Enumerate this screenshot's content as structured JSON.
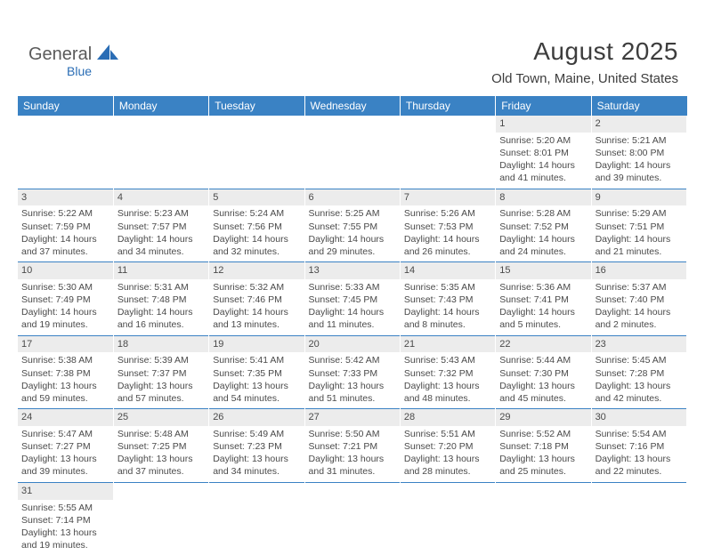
{
  "logo": {
    "part1": "General",
    "part2": "Blue"
  },
  "title": "August 2025",
  "location": "Old Town, Maine, United States",
  "colors": {
    "header_bg": "#3a82c4",
    "header_fg": "#ffffff",
    "daynum_bg": "#ececec",
    "text": "#4a4a4a",
    "brand_gray": "#5a5a5a",
    "brand_blue": "#2a6db5",
    "row_divider": "#3a82c4"
  },
  "fonts": {
    "title_size_pt": 21,
    "location_size_pt": 11,
    "day_header_size_pt": 9,
    "cell_size_pt": 8
  },
  "day_headers": [
    "Sunday",
    "Monday",
    "Tuesday",
    "Wednesday",
    "Thursday",
    "Friday",
    "Saturday"
  ],
  "weeks": [
    [
      {
        "num": "",
        "sunrise": "",
        "sunset": "",
        "daylight": ""
      },
      {
        "num": "",
        "sunrise": "",
        "sunset": "",
        "daylight": ""
      },
      {
        "num": "",
        "sunrise": "",
        "sunset": "",
        "daylight": ""
      },
      {
        "num": "",
        "sunrise": "",
        "sunset": "",
        "daylight": ""
      },
      {
        "num": "",
        "sunrise": "",
        "sunset": "",
        "daylight": ""
      },
      {
        "num": "1",
        "sunrise": "Sunrise: 5:20 AM",
        "sunset": "Sunset: 8:01 PM",
        "daylight": "Daylight: 14 hours and 41 minutes."
      },
      {
        "num": "2",
        "sunrise": "Sunrise: 5:21 AM",
        "sunset": "Sunset: 8:00 PM",
        "daylight": "Daylight: 14 hours and 39 minutes."
      }
    ],
    [
      {
        "num": "3",
        "sunrise": "Sunrise: 5:22 AM",
        "sunset": "Sunset: 7:59 PM",
        "daylight": "Daylight: 14 hours and 37 minutes."
      },
      {
        "num": "4",
        "sunrise": "Sunrise: 5:23 AM",
        "sunset": "Sunset: 7:57 PM",
        "daylight": "Daylight: 14 hours and 34 minutes."
      },
      {
        "num": "5",
        "sunrise": "Sunrise: 5:24 AM",
        "sunset": "Sunset: 7:56 PM",
        "daylight": "Daylight: 14 hours and 32 minutes."
      },
      {
        "num": "6",
        "sunrise": "Sunrise: 5:25 AM",
        "sunset": "Sunset: 7:55 PM",
        "daylight": "Daylight: 14 hours and 29 minutes."
      },
      {
        "num": "7",
        "sunrise": "Sunrise: 5:26 AM",
        "sunset": "Sunset: 7:53 PM",
        "daylight": "Daylight: 14 hours and 26 minutes."
      },
      {
        "num": "8",
        "sunrise": "Sunrise: 5:28 AM",
        "sunset": "Sunset: 7:52 PM",
        "daylight": "Daylight: 14 hours and 24 minutes."
      },
      {
        "num": "9",
        "sunrise": "Sunrise: 5:29 AM",
        "sunset": "Sunset: 7:51 PM",
        "daylight": "Daylight: 14 hours and 21 minutes."
      }
    ],
    [
      {
        "num": "10",
        "sunrise": "Sunrise: 5:30 AM",
        "sunset": "Sunset: 7:49 PM",
        "daylight": "Daylight: 14 hours and 19 minutes."
      },
      {
        "num": "11",
        "sunrise": "Sunrise: 5:31 AM",
        "sunset": "Sunset: 7:48 PM",
        "daylight": "Daylight: 14 hours and 16 minutes."
      },
      {
        "num": "12",
        "sunrise": "Sunrise: 5:32 AM",
        "sunset": "Sunset: 7:46 PM",
        "daylight": "Daylight: 14 hours and 13 minutes."
      },
      {
        "num": "13",
        "sunrise": "Sunrise: 5:33 AM",
        "sunset": "Sunset: 7:45 PM",
        "daylight": "Daylight: 14 hours and 11 minutes."
      },
      {
        "num": "14",
        "sunrise": "Sunrise: 5:35 AM",
        "sunset": "Sunset: 7:43 PM",
        "daylight": "Daylight: 14 hours and 8 minutes."
      },
      {
        "num": "15",
        "sunrise": "Sunrise: 5:36 AM",
        "sunset": "Sunset: 7:41 PM",
        "daylight": "Daylight: 14 hours and 5 minutes."
      },
      {
        "num": "16",
        "sunrise": "Sunrise: 5:37 AM",
        "sunset": "Sunset: 7:40 PM",
        "daylight": "Daylight: 14 hours and 2 minutes."
      }
    ],
    [
      {
        "num": "17",
        "sunrise": "Sunrise: 5:38 AM",
        "sunset": "Sunset: 7:38 PM",
        "daylight": "Daylight: 13 hours and 59 minutes."
      },
      {
        "num": "18",
        "sunrise": "Sunrise: 5:39 AM",
        "sunset": "Sunset: 7:37 PM",
        "daylight": "Daylight: 13 hours and 57 minutes."
      },
      {
        "num": "19",
        "sunrise": "Sunrise: 5:41 AM",
        "sunset": "Sunset: 7:35 PM",
        "daylight": "Daylight: 13 hours and 54 minutes."
      },
      {
        "num": "20",
        "sunrise": "Sunrise: 5:42 AM",
        "sunset": "Sunset: 7:33 PM",
        "daylight": "Daylight: 13 hours and 51 minutes."
      },
      {
        "num": "21",
        "sunrise": "Sunrise: 5:43 AM",
        "sunset": "Sunset: 7:32 PM",
        "daylight": "Daylight: 13 hours and 48 minutes."
      },
      {
        "num": "22",
        "sunrise": "Sunrise: 5:44 AM",
        "sunset": "Sunset: 7:30 PM",
        "daylight": "Daylight: 13 hours and 45 minutes."
      },
      {
        "num": "23",
        "sunrise": "Sunrise: 5:45 AM",
        "sunset": "Sunset: 7:28 PM",
        "daylight": "Daylight: 13 hours and 42 minutes."
      }
    ],
    [
      {
        "num": "24",
        "sunrise": "Sunrise: 5:47 AM",
        "sunset": "Sunset: 7:27 PM",
        "daylight": "Daylight: 13 hours and 39 minutes."
      },
      {
        "num": "25",
        "sunrise": "Sunrise: 5:48 AM",
        "sunset": "Sunset: 7:25 PM",
        "daylight": "Daylight: 13 hours and 37 minutes."
      },
      {
        "num": "26",
        "sunrise": "Sunrise: 5:49 AM",
        "sunset": "Sunset: 7:23 PM",
        "daylight": "Daylight: 13 hours and 34 minutes."
      },
      {
        "num": "27",
        "sunrise": "Sunrise: 5:50 AM",
        "sunset": "Sunset: 7:21 PM",
        "daylight": "Daylight: 13 hours and 31 minutes."
      },
      {
        "num": "28",
        "sunrise": "Sunrise: 5:51 AM",
        "sunset": "Sunset: 7:20 PM",
        "daylight": "Daylight: 13 hours and 28 minutes."
      },
      {
        "num": "29",
        "sunrise": "Sunrise: 5:52 AM",
        "sunset": "Sunset: 7:18 PM",
        "daylight": "Daylight: 13 hours and 25 minutes."
      },
      {
        "num": "30",
        "sunrise": "Sunrise: 5:54 AM",
        "sunset": "Sunset: 7:16 PM",
        "daylight": "Daylight: 13 hours and 22 minutes."
      }
    ],
    [
      {
        "num": "31",
        "sunrise": "Sunrise: 5:55 AM",
        "sunset": "Sunset: 7:14 PM",
        "daylight": "Daylight: 13 hours and 19 minutes."
      },
      {
        "num": "",
        "sunrise": "",
        "sunset": "",
        "daylight": ""
      },
      {
        "num": "",
        "sunrise": "",
        "sunset": "",
        "daylight": ""
      },
      {
        "num": "",
        "sunrise": "",
        "sunset": "",
        "daylight": ""
      },
      {
        "num": "",
        "sunrise": "",
        "sunset": "",
        "daylight": ""
      },
      {
        "num": "",
        "sunrise": "",
        "sunset": "",
        "daylight": ""
      },
      {
        "num": "",
        "sunrise": "",
        "sunset": "",
        "daylight": ""
      }
    ]
  ]
}
